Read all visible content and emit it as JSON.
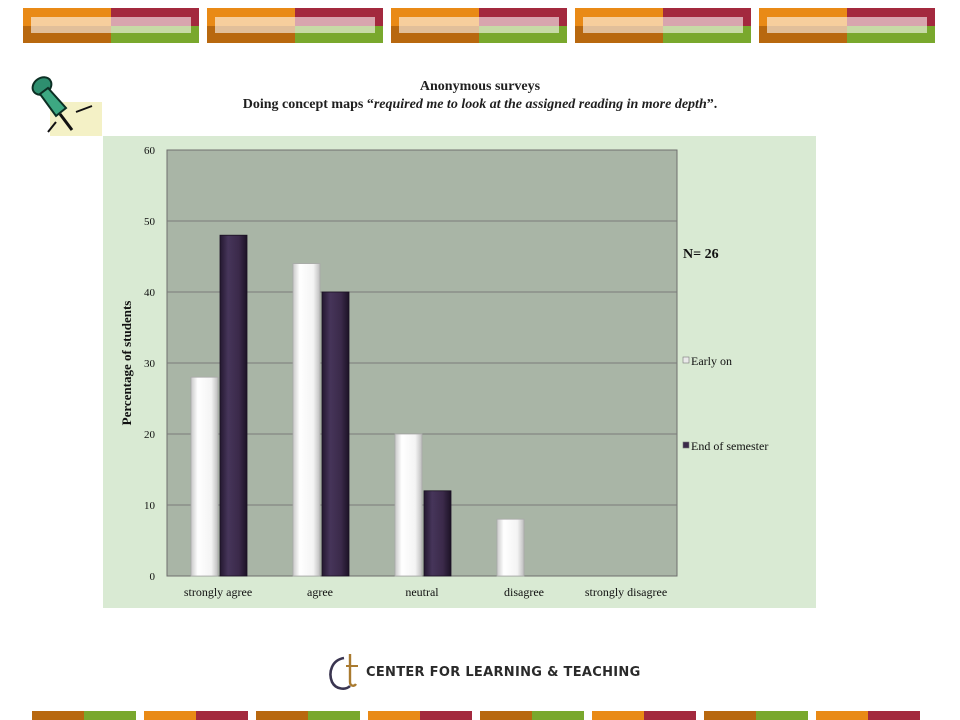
{
  "header": {
    "title_line1": "Anonymous surveys",
    "title_line2_prefix": "Doing concept maps “",
    "title_line2_italic": "required me to look at the assigned reading in more depth",
    "title_line2_suffix": "”."
  },
  "chart_data": {
    "type": "bar",
    "categories": [
      "strongly  agree",
      "agree",
      "neutral",
      "disagree",
      "strongly disagree"
    ],
    "series": [
      {
        "name": "Early on",
        "values": [
          28,
          44,
          20,
          8,
          0
        ],
        "color": "#f2f2f2"
      },
      {
        "name": "End of semester",
        "values": [
          48,
          40,
          12,
          0,
          0
        ],
        "color": "#3b2a4a"
      }
    ],
    "ylabel": "Percentage  of students",
    "ylim": [
      0,
      60
    ],
    "yticks": [
      0,
      10,
      20,
      30,
      40,
      50,
      60
    ],
    "grid": true,
    "legend_position": "right",
    "annotation": "N= 26",
    "plot_background": "#a9b5a6"
  },
  "footer": {
    "logo_text": "CENTER FOR LEARNING & TEACHING"
  },
  "colors": {
    "orange": "#e98a16",
    "crimson": "#a3293e",
    "green": "#79a82d",
    "brown": "#b8680f"
  },
  "icons": {
    "pin": "pushpin-icon"
  }
}
